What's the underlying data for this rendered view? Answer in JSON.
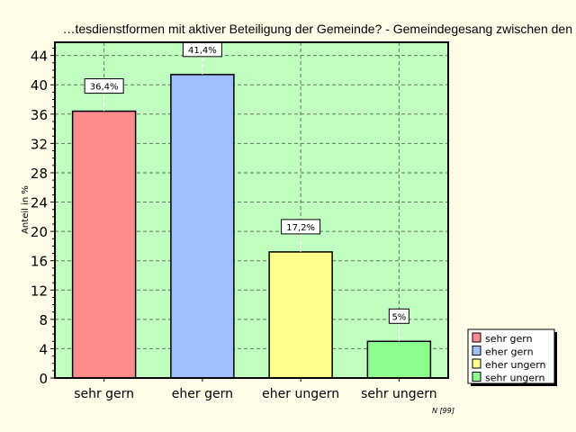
{
  "chart_data": {
    "type": "bar",
    "title": "…tesdienstformen mit aktiver Beteiligung der Gemeinde? - Gemeindegesang zwischen den",
    "xlabel": "",
    "ylabel": "Anteil in %",
    "categories": [
      "sehr gern",
      "eher gern",
      "eher ungern",
      "sehr ungern"
    ],
    "values": [
      36.4,
      41.4,
      17.2,
      5
    ],
    "data_labels": [
      "36,4%",
      "41,4%",
      "17,2%",
      "5%"
    ],
    "colors": [
      "#ff8c8c",
      "#a0bfff",
      "#ffff8c",
      "#8cff8c"
    ],
    "ylim": [
      0,
      45.8
    ],
    "yticks": [
      0,
      4,
      8,
      12,
      16,
      20,
      24,
      28,
      32,
      36,
      40,
      44
    ],
    "grid": true,
    "legend": {
      "position": "bottom-right",
      "entries": [
        "sehr gern",
        "eher gern",
        "eher ungern",
        "sehr ungern"
      ]
    },
    "footnote": "N [99]",
    "plot_background": "#c0ffc0"
  }
}
